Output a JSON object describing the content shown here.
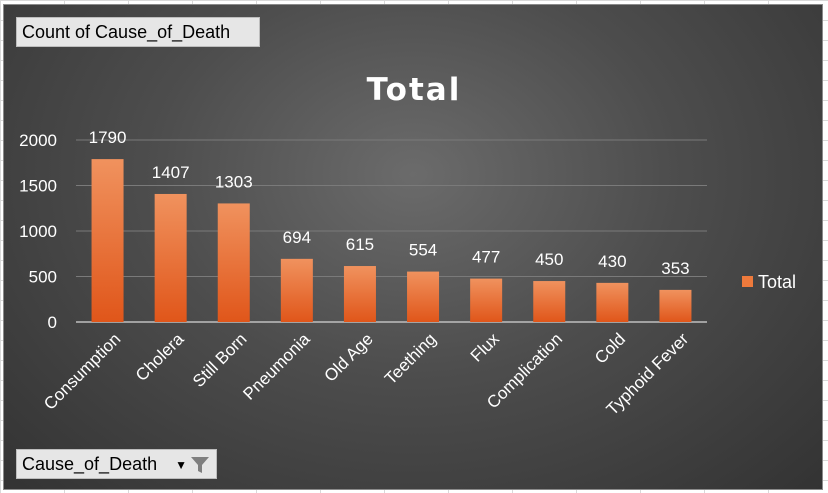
{
  "pivot": {
    "value_field": "Count of Cause_of_Death",
    "axis_field": "Cause_of_Death",
    "filter_icon": "funnel-icon",
    "dropdown_icon": "chevron-down-icon"
  },
  "colors": {
    "bar_top": "#f0925e",
    "bar_bottom": "#e0561a",
    "legend_swatch": "#ee7a3c"
  },
  "chart_data": {
    "type": "bar",
    "title": "Total",
    "categories": [
      "Consumption",
      "Cholera",
      "Still Born",
      "Pneumonia",
      "Old Age",
      "Teething",
      "Flux",
      "Complication",
      "Cold",
      "Typhoid Fever"
    ],
    "series": [
      {
        "name": "Total",
        "values": [
          1790,
          1407,
          1303,
          694,
          615,
          554,
          477,
          450,
          430,
          353
        ]
      }
    ],
    "yticks": [
      0,
      500,
      1000,
      1500,
      2000
    ],
    "ylim": [
      0,
      2000
    ],
    "grid": true,
    "legend_position": "right",
    "data_labels": true
  }
}
